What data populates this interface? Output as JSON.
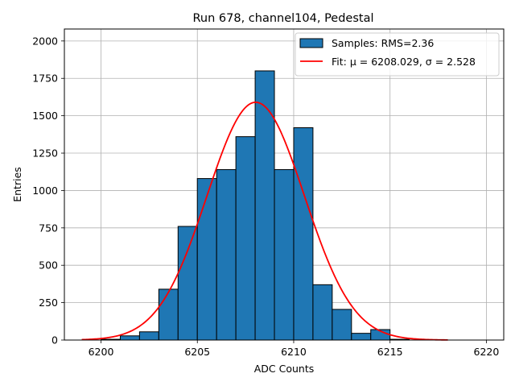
{
  "chart_data": {
    "type": "bar",
    "title": "Run 678, channel104, Pedestal",
    "xlabel": "ADC Counts",
    "ylabel": "Entries",
    "xlim": [
      6198.1,
      6220.9
    ],
    "ylim": [
      0,
      2080
    ],
    "xticks": [
      6200,
      6205,
      6210,
      6215,
      6220
    ],
    "yticks": [
      0,
      250,
      500,
      750,
      1000,
      1250,
      1500,
      1750,
      2000
    ],
    "grid": true,
    "legend_position": "top-right",
    "histogram": {
      "name": "Samples: RMS=2.36",
      "color": "#1f77b4",
      "edge_color": "#000000",
      "bins": [
        {
          "x0": 6200,
          "x1": 6201,
          "count": 5
        },
        {
          "x0": 6201,
          "x1": 6202,
          "count": 28
        },
        {
          "x0": 6202,
          "x1": 6203,
          "count": 55
        },
        {
          "x0": 6203,
          "x1": 6204,
          "count": 340
        },
        {
          "x0": 6204,
          "x1": 6205,
          "count": 760
        },
        {
          "x0": 6205,
          "x1": 6206,
          "count": 1080
        },
        {
          "x0": 6206,
          "x1": 6207,
          "count": 1140
        },
        {
          "x0": 6207,
          "x1": 6208,
          "count": 1360
        },
        {
          "x0": 6208,
          "x1": 6209,
          "count": 1800
        },
        {
          "x0": 6209,
          "x1": 6210,
          "count": 1140
        },
        {
          "x0": 6210,
          "x1": 6211,
          "count": 1420
        },
        {
          "x0": 6211,
          "x1": 6212,
          "count": 370
        },
        {
          "x0": 6212,
          "x1": 6213,
          "count": 205
        },
        {
          "x0": 6213,
          "x1": 6214,
          "count": 45
        },
        {
          "x0": 6214,
          "x1": 6215,
          "count": 70
        },
        {
          "x0": 6215,
          "x1": 6216,
          "count": 5
        }
      ]
    },
    "fit": {
      "name": "Fit: μ = 6208.029, σ = 2.528",
      "color": "#ff0000",
      "type": "gaussian",
      "mu": 6208.029,
      "sigma": 2.528,
      "amplitude": 1590,
      "x_range": [
        6199,
        6218
      ]
    }
  }
}
